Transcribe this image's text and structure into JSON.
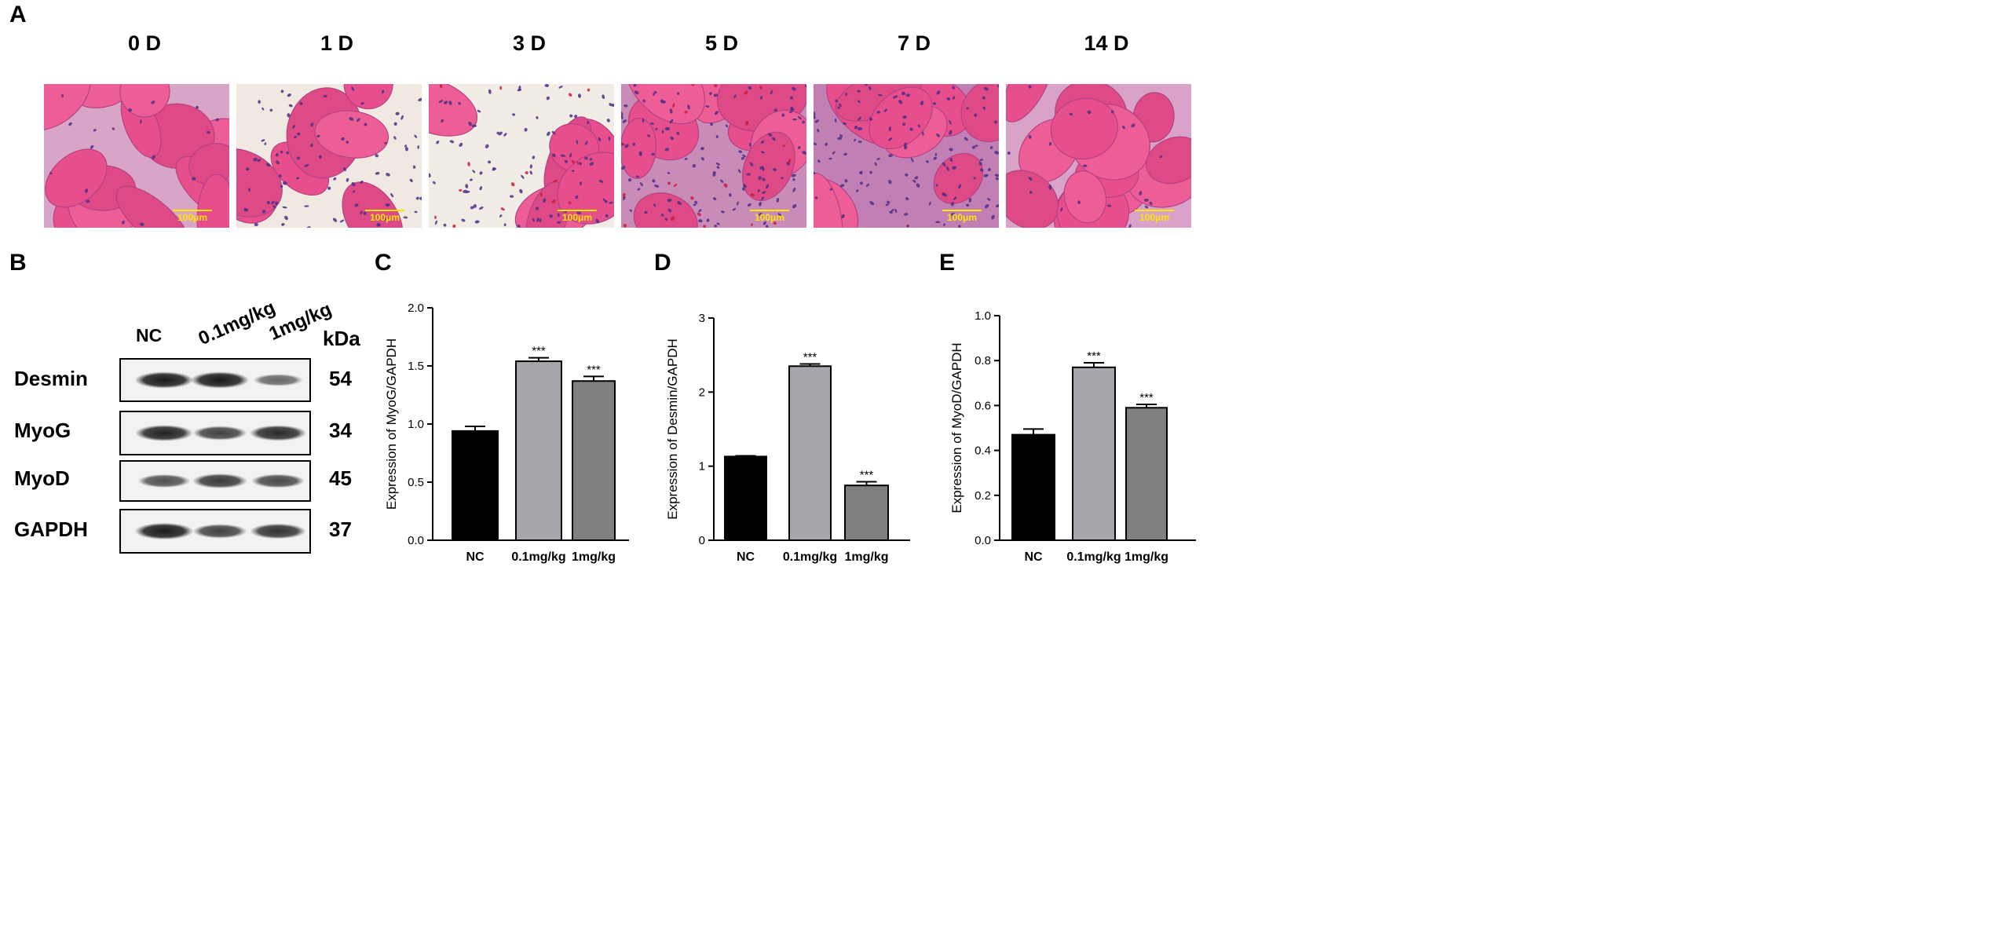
{
  "panel_a": {
    "letter": "A",
    "days": [
      "0 D",
      "1 D",
      "3 D",
      "5 D",
      "7 D",
      "14 D"
    ],
    "scale_label": "100μm"
  },
  "panel_b": {
    "letter": "B",
    "columns": [
      "NC",
      "0.1mg/kg",
      "1mg/kg"
    ],
    "kda_header": "kDa",
    "rows": [
      {
        "name": "Desmin",
        "kda": "54",
        "band_intensity": [
          0.95,
          0.95,
          0.45
        ]
      },
      {
        "name": "MyoG",
        "kda": "34",
        "band_intensity": [
          0.9,
          0.7,
          0.85
        ]
      },
      {
        "name": "MyoD",
        "kda": "45",
        "band_intensity": [
          0.6,
          0.75,
          0.65
        ]
      },
      {
        "name": "GAPDH",
        "kda": "37",
        "band_intensity": [
          0.95,
          0.7,
          0.8
        ]
      }
    ]
  },
  "colors": {
    "bar_nc": "#000000",
    "bar_01": "#a7a6ac",
    "bar_1": "#7f7f7f",
    "scale": "#ffe600",
    "tissue_pink": "#e84f8a",
    "nuclei": "#5a3c8f"
  },
  "chart_data": [
    {
      "type": "bar",
      "letter": "C",
      "categories": [
        "NC",
        "0.1mg/kg",
        "1mg/kg"
      ],
      "values": [
        0.94,
        1.54,
        1.37
      ],
      "errors": [
        0.04,
        0.03,
        0.04
      ],
      "significance": [
        "",
        "***",
        "***"
      ],
      "ylabel": "Expression of MyoG/GAPDH",
      "ylim": [
        0,
        2.0
      ],
      "yticks": [
        "0.0",
        "0.5",
        "1.0",
        "1.5",
        "2.0"
      ],
      "ytick_values": [
        0,
        0.5,
        1.0,
        1.5,
        2.0
      ]
    },
    {
      "type": "bar",
      "letter": "D",
      "categories": [
        "NC",
        "0.1mg/kg",
        "1mg/kg"
      ],
      "values": [
        1.13,
        2.35,
        0.74
      ],
      "errors": [
        0.01,
        0.03,
        0.05
      ],
      "significance": [
        "",
        "***",
        "***"
      ],
      "ylabel": "Expression of Desmin/GAPDH",
      "ylim": [
        0,
        3
      ],
      "yticks": [
        "0",
        "1",
        "2",
        "3"
      ],
      "ytick_values": [
        0,
        1,
        2,
        3
      ]
    },
    {
      "type": "bar",
      "letter": "E",
      "categories": [
        "NC",
        "0.1mg/kg",
        "1mg/kg"
      ],
      "values": [
        0.47,
        0.77,
        0.59
      ],
      "errors": [
        0.025,
        0.02,
        0.015
      ],
      "significance": [
        "",
        "***",
        "***"
      ],
      "ylabel": "Expression of MyoD/GAPDH",
      "ylim": [
        0,
        1.0
      ],
      "yticks": [
        "0.0",
        "0.2",
        "0.4",
        "0.6",
        "0.8",
        "1.0"
      ],
      "ytick_values": [
        0,
        0.2,
        0.4,
        0.6,
        0.8,
        1.0
      ]
    }
  ]
}
